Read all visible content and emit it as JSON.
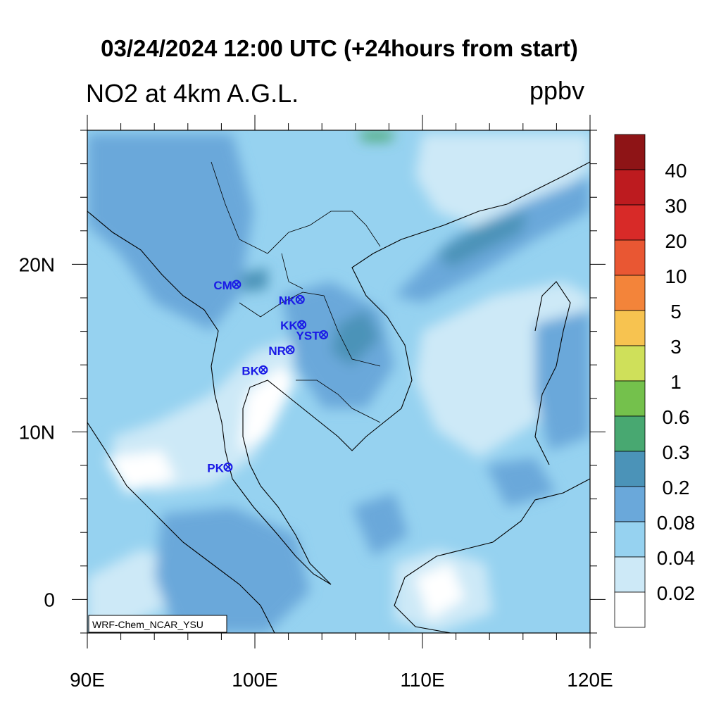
{
  "title": "03/24/2024 12:00 UTC (+24hours from start)",
  "left_title": "NO2 at 4km A.G.L.",
  "right_title": "ppbv",
  "credit": "WRF-Chem_NCAR_YSU",
  "colors": {
    "bins": [
      "#ffffff",
      "#cde9f7",
      "#96d2f0",
      "#6aa8da",
      "#4b93b8",
      "#48a871",
      "#74c14c",
      "#cfe05a",
      "#f7c350",
      "#f3843a",
      "#e95733",
      "#d82a28",
      "#bd1b1f",
      "#8e1416"
    ],
    "station": "#1a1ae6"
  },
  "colorbar": {
    "labels": [
      "0.02",
      "0.04",
      "0.08",
      "0.2",
      "0.3",
      "0.6",
      "1",
      "3",
      "5",
      "10",
      "20",
      "30",
      "40"
    ]
  },
  "axes": {
    "x_ticks": [
      "90E",
      "100E",
      "110E",
      "120E"
    ],
    "y_ticks": [
      "20N",
      "10N",
      "0"
    ]
  },
  "chart_data": {
    "type": "map",
    "lon_range": [
      90,
      120
    ],
    "lat_range": [
      -2,
      28
    ],
    "stations": [
      {
        "label": "CM",
        "lon": 98.9,
        "lat": 18.8
      },
      {
        "label": "NK",
        "lon": 102.7,
        "lat": 17.9
      },
      {
        "label": "KK",
        "lon": 102.8,
        "lat": 16.4
      },
      {
        "label": "YST",
        "lon": 104.1,
        "lat": 15.8
      },
      {
        "label": "NR",
        "lon": 102.1,
        "lat": 14.9
      },
      {
        "label": "BK",
        "lon": 100.5,
        "lat": 13.7
      },
      {
        "label": "PK",
        "lon": 98.4,
        "lat": 7.9
      }
    ]
  }
}
